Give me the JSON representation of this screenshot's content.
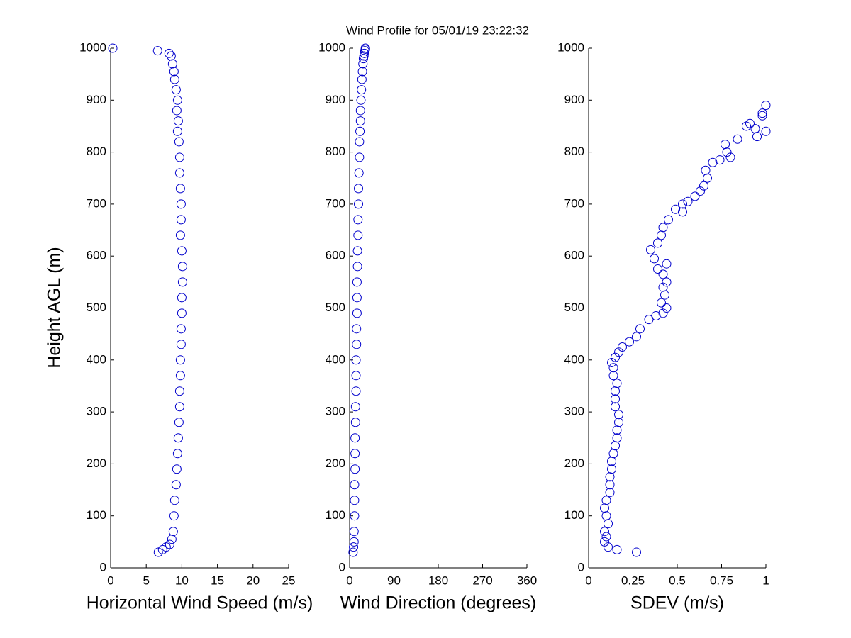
{
  "chart_data": [
    {
      "type": "scatter",
      "xlabel": "Horizontal Wind Speed (m/s)",
      "ylabel": "Height AGL (m)",
      "color": "#0000cc",
      "x": [
        6.7,
        7.3,
        7.8,
        8.3,
        8.6,
        8.8,
        8.9,
        9.0,
        9.2,
        9.3,
        9.4,
        9.5,
        9.6,
        9.7,
        9.7,
        9.8,
        9.8,
        9.9,
        9.9,
        10.0,
        10.0,
        10.1,
        10.1,
        10.0,
        9.8,
        9.9,
        9.9,
        9.8,
        9.7,
        9.7,
        9.6,
        9.4,
        9.5,
        9.3,
        9.4,
        9.2,
        9.0,
        8.9,
        8.7,
        8.5,
        8.2,
        6.6,
        0.3
      ],
      "values": [
        30,
        35,
        40,
        45,
        55,
        70,
        100,
        130,
        160,
        190,
        220,
        250,
        280,
        310,
        340,
        370,
        400,
        430,
        460,
        490,
        520,
        550,
        580,
        610,
        640,
        670,
        700,
        730,
        760,
        790,
        820,
        840,
        860,
        880,
        900,
        920,
        940,
        955,
        970,
        985,
        990,
        995,
        1000
      ],
      "xlim": [
        0,
        25
      ],
      "xticks": [
        0,
        5,
        10,
        15,
        20,
        25
      ],
      "ylim": [
        0,
        1000
      ],
      "yticks": [
        0,
        100,
        200,
        300,
        400,
        500,
        600,
        700,
        800,
        900,
        1000
      ]
    },
    {
      "type": "scatter",
      "title": "Wind Profile for  05/01/19 23:22:32",
      "xlabel": "Wind Direction (degrees)",
      "color": "#0000cc",
      "x": [
        7,
        8,
        9,
        9,
        10,
        10,
        10,
        11,
        11,
        11,
        12,
        12,
        13,
        13,
        13,
        14,
        14,
        15,
        15,
        15,
        16,
        16,
        17,
        17,
        18,
        18,
        19,
        20,
        20,
        21,
        22,
        22,
        23,
        24,
        25,
        26,
        27,
        28,
        29,
        30,
        31,
        32,
        32
      ],
      "values": [
        30,
        40,
        50,
        70,
        100,
        130,
        160,
        190,
        220,
        250,
        280,
        310,
        340,
        370,
        400,
        430,
        460,
        490,
        520,
        550,
        580,
        610,
        640,
        670,
        700,
        730,
        760,
        790,
        820,
        840,
        860,
        880,
        900,
        920,
        940,
        955,
        970,
        980,
        985,
        990,
        995,
        998,
        1000
      ],
      "xlim": [
        0,
        360
      ],
      "xticks": [
        0,
        90,
        180,
        270,
        360
      ],
      "ylim": [
        0,
        1000
      ],
      "yticks": [
        0,
        100,
        200,
        300,
        400,
        500,
        600,
        700,
        800,
        900,
        1000
      ]
    },
    {
      "type": "scatter",
      "xlabel": "SDEV  (m/s)",
      "color": "#0000cc",
      "x": [
        0.27,
        0.16,
        0.11,
        0.09,
        0.1,
        0.09,
        0.11,
        0.1,
        0.09,
        0.1,
        0.12,
        0.12,
        0.12,
        0.13,
        0.13,
        0.14,
        0.15,
        0.16,
        0.16,
        0.17,
        0.17,
        0.15,
        0.15,
        0.15,
        0.16,
        0.14,
        0.14,
        0.13,
        0.15,
        0.17,
        0.19,
        0.23,
        0.27,
        0.29,
        0.34,
        0.38,
        0.42,
        0.44,
        0.41,
        0.43,
        0.42,
        0.44,
        0.42,
        0.44,
        0.39,
        0.37,
        0.35,
        0.39,
        0.41,
        0.42,
        0.45,
        0.49,
        0.53,
        0.53,
        0.56,
        0.6,
        0.63,
        0.65,
        0.67,
        0.66,
        0.7,
        0.74,
        0.78,
        0.8,
        0.77,
        0.84,
        0.95,
        1.0,
        0.94,
        0.89,
        0.91,
        0.98,
        0.98,
        1.0
      ],
      "values": [
        30,
        35,
        40,
        50,
        60,
        70,
        85,
        100,
        115,
        130,
        145,
        160,
        175,
        190,
        205,
        220,
        235,
        250,
        265,
        280,
        295,
        310,
        325,
        340,
        355,
        370,
        385,
        395,
        405,
        415,
        425,
        435,
        445,
        460,
        478,
        485,
        490,
        500,
        510,
        525,
        540,
        550,
        565,
        585,
        575,
        595,
        612,
        625,
        640,
        655,
        670,
        690,
        700,
        685,
        705,
        715,
        725,
        735,
        750,
        765,
        780,
        785,
        800,
        790,
        815,
        825,
        830,
        840,
        845,
        850,
        855,
        870,
        875,
        890
      ],
      "xlim": [
        0,
        1
      ],
      "xticks": [
        0,
        0.25,
        0.5,
        0.75,
        1
      ],
      "ylim": [
        0,
        1000
      ],
      "yticks": [
        0,
        100,
        200,
        300,
        400,
        500,
        600,
        700,
        800,
        900,
        1000
      ]
    }
  ]
}
